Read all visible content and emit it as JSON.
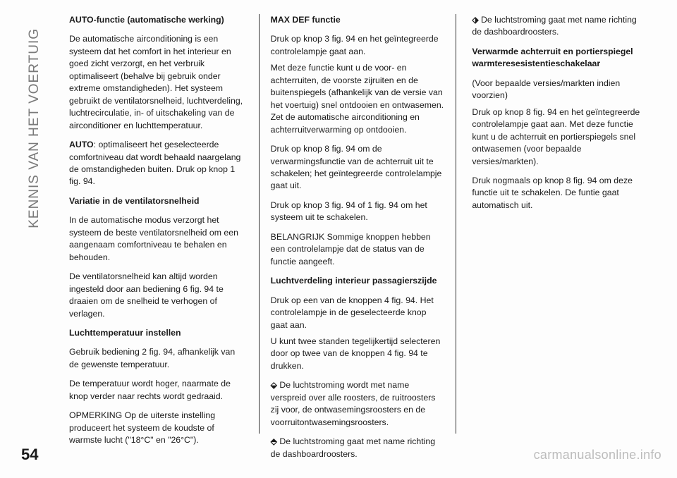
{
  "sidebar": "KENNIS VAN HET VOERTUIG",
  "page_number": "54",
  "watermark": "carmanualsonline.info",
  "col1": {
    "h1": "AUTO-functie (automatische werking)",
    "p1": "De automatische airconditioning is een systeem dat het comfort in het interieur en goed zicht verzorgt, en het verbruik optimaliseert (behalve bij gebruik onder extreme omstandigheden). Het systeem gebruikt de ventilatorsnelheid, luchtverdeling, luchtrecirculatie, in- of uitschakeling van de airconditioner en luchttemperatuur.",
    "p2a": "AUTO",
    "p2b": ": optimaliseert het geselecteerde comfortniveau dat wordt behaald naargelang de omstandigheden buiten. Druk op knop 1 fig. 94.",
    "h2": "Variatie in de ventilatorsnelheid",
    "p3": "In de automatische modus verzorgt het systeem de beste ventilatorsnelheid om een aangenaam comfortniveau te behalen en behouden.",
    "p4": "De ventilatorsnelheid kan altijd worden ingesteld door aan bediening 6 fig. 94 te draaien om de snelheid te verhogen of verlagen.",
    "h3": "Luchttemperatuur instellen",
    "p5": "Gebruik bediening 2 fig. 94, afhankelijk van de gewenste temperatuur.",
    "p6": "De temperatuur wordt hoger, naarmate de knop verder naar rechts wordt gedraaid.",
    "p7": "OPMERKING Op de uiterste instelling produceert het systeem de koudste of warmste lucht (\"18°C\" en \"26°C\")."
  },
  "col2": {
    "h1": "MAX DEF functie",
    "p1": "Druk op knop 3 fig. 94 en het geïntegreerde controlelampje gaat aan.",
    "p2": "Met deze functie kunt u de voor- en achterruiten, de voorste zijruiten en de buitenspiegels (afhankelijk van de versie van het voertuig) snel ontdooien en ontwasemen. Zet de automatische airconditioning en achterruitverwarming op ontdooien.",
    "p3": "Druk op knop 8 fig. 94 om de verwarmingsfunctie van de achterruit uit te schakelen; het geïntegreerde controlelampje gaat uit.",
    "p4": "Druk op knop 3 fig. 94 of 1 fig. 94 om het systeem uit te schakelen.",
    "p5": "BELANGRIJK Sommige knoppen hebben een controlelampje dat de status van de functie aangeeft.",
    "h2": "Luchtverdeling interieur passagierszijde",
    "p6": "Druk op een van de knoppen 4 fig. 94. Het controlelampje in de geselecteerde knop gaat aan.",
    "p7": "U kunt twee standen tegelijkertijd selecteren door op twee van de knoppen 4 fig. 94 te drukken.",
    "p8": " De luchtstroming wordt met name verspreid over alle roosters, de ruitroosters zij voor, de ontwasemingsroosters en de voorruitontwasemingsroosters.",
    "p9": " De luchtstroming gaat met name richting de dashboardroosters."
  },
  "col3": {
    "p1": " De luchtstroming gaat met name richting de dashboardroosters.",
    "h1": "Verwarmde achterruit en portierspiegel warmteresesistentieschakelaar",
    "p2": "(Voor bepaalde versies/markten indien voorzien)",
    "p3": "Druk op knop 8 fig. 94 en het geïntegreerde controlelampje gaat aan. Met deze functie kunt u de achterruit en portierspiegels snel ontwasemen (voor bepaalde versies/markten).",
    "p4": "Druk nogmaals op knop 8 fig. 94 om deze functie uit te schakelen. De funtie gaat automatisch uit."
  }
}
